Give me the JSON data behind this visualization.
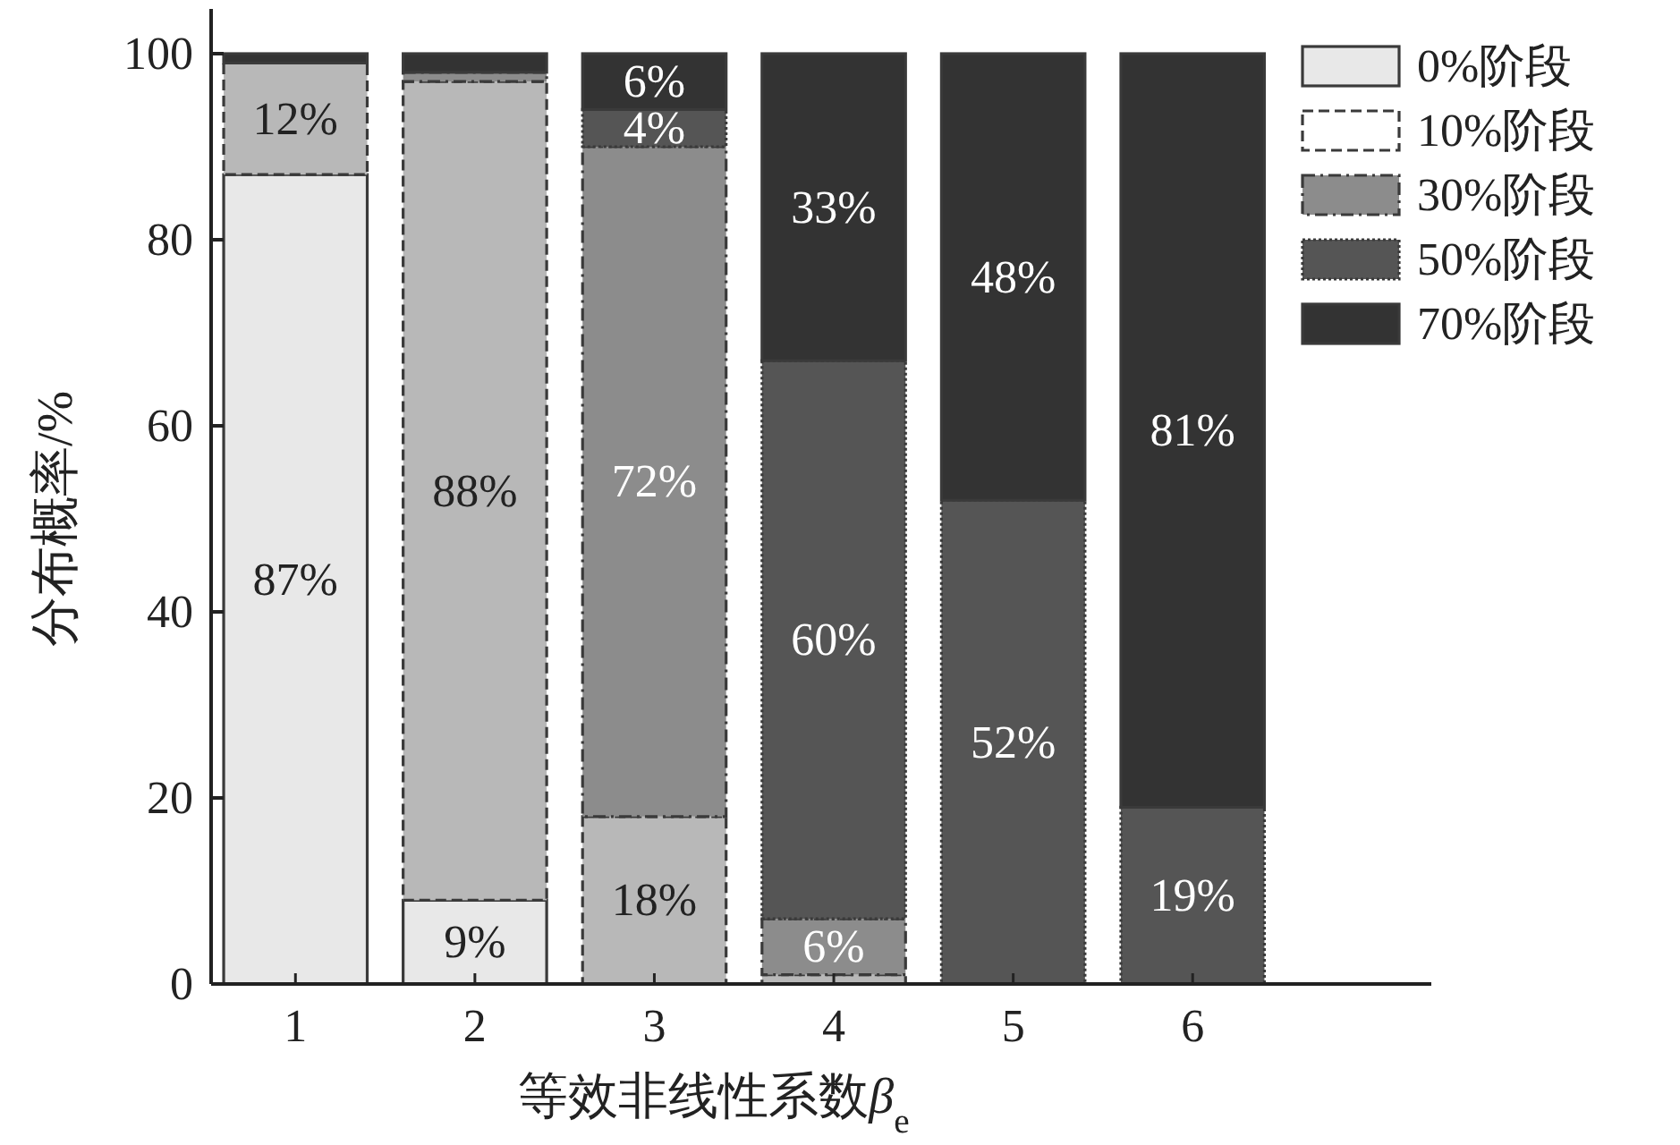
{
  "chart_data": {
    "type": "bar",
    "stacked": true,
    "xlabel": "等效非线性系数β$_{e}$",
    "ylabel": "分布概率/%",
    "categories": [
      "1",
      "2",
      "3",
      "4",
      "5",
      "6"
    ],
    "ylim": [
      0,
      100
    ],
    "yticks": [
      0,
      20,
      40,
      60,
      80,
      100
    ],
    "grid": false,
    "legend": "top right",
    "series": [
      {
        "name": "0%阶段",
        "color": "#e8e8e8",
        "line_style": "solid",
        "values": [
          87,
          9,
          0,
          0,
          0,
          0
        ],
        "value_labels": [
          "87%",
          "9%",
          null,
          null,
          null,
          null
        ]
      },
      {
        "name": "10%阶段",
        "color": "#b8b8b8",
        "line_style": "dashed",
        "values": [
          12,
          88,
          18,
          1,
          0,
          0
        ],
        "value_labels": [
          "12%",
          "88%",
          "18%",
          null,
          null,
          null
        ]
      },
      {
        "name": "30%阶段",
        "color": "#8c8c8c",
        "line_style": "dashdot",
        "values": [
          0,
          1,
          72,
          6,
          0,
          0
        ],
        "value_labels": [
          null,
          null,
          "72%",
          "6%",
          null,
          null
        ]
      },
      {
        "name": "50%阶段",
        "color": "#555555",
        "line_style": "dotted",
        "values": [
          0,
          0,
          4,
          60,
          52,
          19
        ],
        "value_labels": [
          null,
          null,
          "4%",
          "60%",
          "52%",
          "19%"
        ]
      },
      {
        "name": "70%阶段",
        "color": "#333333",
        "line_style": "solid",
        "values": [
          1,
          2,
          6,
          33,
          48,
          81
        ],
        "value_labels": [
          null,
          null,
          "6%",
          "33%",
          "48%",
          "81%"
        ]
      }
    ]
  }
}
